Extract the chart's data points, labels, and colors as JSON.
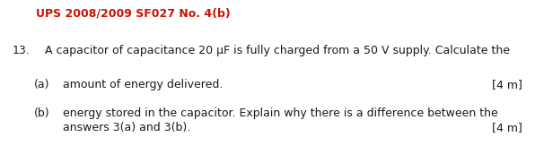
{
  "title": "UPS 2008/2009 SF027 No. 4(b)",
  "title_color": "#cc1100",
  "title_fontsize": 9.0,
  "question_number": "13.",
  "question_text": "A capacitor of capacitance 20 μF is fully charged from a 50 V supply. Calculate the",
  "sub_a_label": "(a)",
  "sub_a_text": "amount of energy delivered.",
  "sub_a_mark": "[4 m]",
  "sub_b_label": "(b)",
  "sub_b_line1": "energy stored in the capacitor. Explain why there is a difference between the",
  "sub_b_line2": "answers 3(a) and 3(b).",
  "sub_b_mark": "[4 m]",
  "background_color": "#ffffff",
  "text_color": "#1a1a1a",
  "font_size": 9.0,
  "fig_width": 5.96,
  "fig_height": 1.82,
  "dpi": 100
}
